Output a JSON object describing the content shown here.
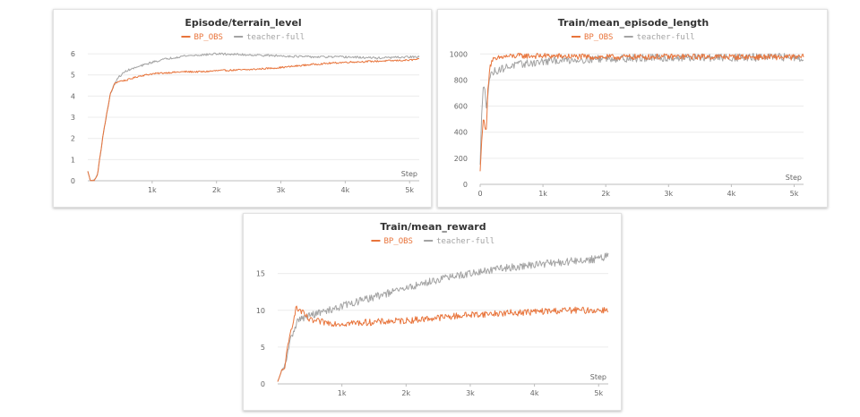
{
  "colors": {
    "bp_obs": "#e8743b",
    "teacher": "#a3a3a3"
  },
  "chart_data": [
    {
      "type": "line",
      "title": "Episode/terrain_level",
      "xlabel": "Step",
      "xlim": [
        0,
        5150
      ],
      "ylim": [
        0,
        6.3
      ],
      "x_ticks": [
        1000,
        2000,
        3000,
        4000,
        5000
      ],
      "x_tick_labels": [
        "1k",
        "2k",
        "3k",
        "4k",
        "5k"
      ],
      "y_ticks": [
        0,
        1,
        2,
        3,
        4,
        5,
        6
      ],
      "y_tick_labels": [
        "0",
        "1",
        "2",
        "3",
        "4",
        "5",
        "6"
      ],
      "legend_position": "top-center",
      "series": [
        {
          "name": "BP_OBS",
          "color": "#e8743b",
          "noise": 0.04,
          "x": [
            0,
            40,
            100,
            150,
            250,
            350,
            420,
            480,
            600,
            800,
            1000,
            1200,
            1500,
            1800,
            2000,
            2500,
            3000,
            3500,
            4000,
            4500,
            5000,
            5150
          ],
          "y": [
            0.45,
            0.0,
            0.0,
            0.3,
            2.4,
            4.1,
            4.6,
            4.7,
            4.75,
            4.95,
            5.05,
            5.1,
            5.15,
            5.15,
            5.2,
            5.25,
            5.35,
            5.5,
            5.6,
            5.65,
            5.7,
            5.75
          ]
        },
        {
          "name": "teacher-full",
          "color": "#a3a3a3",
          "noise": 0.05,
          "x": [
            0,
            40,
            100,
            150,
            250,
            350,
            420,
            480,
            600,
            800,
            1000,
            1200,
            1500,
            1800,
            2000,
            2500,
            3000,
            3500,
            4000,
            4500,
            5000,
            5150
          ],
          "y": [
            0.45,
            0.0,
            0.0,
            0.3,
            2.4,
            4.1,
            4.6,
            4.9,
            5.2,
            5.4,
            5.6,
            5.75,
            5.9,
            5.95,
            6.0,
            5.95,
            5.9,
            5.85,
            5.85,
            5.8,
            5.85,
            5.85
          ]
        }
      ]
    },
    {
      "type": "line",
      "title": "Train/mean_episode_length",
      "xlabel": "Step",
      "xlim": [
        0,
        5150
      ],
      "ylim": [
        0,
        1050
      ],
      "x_ticks": [
        0,
        1000,
        2000,
        3000,
        4000,
        5000
      ],
      "x_tick_labels": [
        "0",
        "1k",
        "2k",
        "3k",
        "4k",
        "5k"
      ],
      "y_ticks": [
        0,
        200,
        400,
        600,
        800,
        1000
      ],
      "y_tick_labels": [
        "0",
        "200",
        "400",
        "600",
        "800",
        "1000"
      ],
      "legend_position": "top-center",
      "series": [
        {
          "name": "BP_OBS",
          "color": "#e8743b",
          "noise": 22,
          "x": [
            0,
            20,
            50,
            80,
            100,
            120,
            150,
            200,
            250,
            300,
            400,
            600,
            1000,
            2000,
            3000,
            4000,
            5000,
            5150
          ],
          "y": [
            100,
            300,
            500,
            450,
            400,
            700,
            900,
            960,
            950,
            970,
            980,
            985,
            985,
            975,
            980,
            978,
            975,
            978
          ]
        },
        {
          "name": "teacher-full",
          "color": "#a3a3a3",
          "noise": 30,
          "x": [
            0,
            20,
            50,
            80,
            100,
            120,
            150,
            200,
            300,
            500,
            800,
            1200,
            2000,
            3000,
            4000,
            5000,
            5150
          ],
          "y": [
            150,
            500,
            750,
            700,
            600,
            700,
            820,
            860,
            880,
            910,
            930,
            950,
            965,
            970,
            972,
            975,
            970
          ]
        }
      ]
    },
    {
      "type": "line",
      "title": "Train/mean_reward",
      "xlabel": "Step",
      "xlim": [
        0,
        5150
      ],
      "ylim": [
        0,
        18
      ],
      "x_ticks": [
        1000,
        2000,
        3000,
        4000,
        5000
      ],
      "x_tick_labels": [
        "1k",
        "2k",
        "3k",
        "4k",
        "5k"
      ],
      "y_ticks": [
        0,
        5,
        10,
        15
      ],
      "y_tick_labels": [
        "0",
        "5",
        "10",
        "15"
      ],
      "legend_position": "top-center",
      "series": [
        {
          "name": "BP_OBS",
          "color": "#e8743b",
          "noise": 0.45,
          "x": [
            0,
            50,
            100,
            200,
            280,
            350,
            500,
            800,
            1000,
            1500,
            2000,
            2500,
            3000,
            3500,
            4000,
            4500,
            5000,
            5150
          ],
          "y": [
            0.3,
            1.5,
            2.0,
            7.0,
            10.2,
            10.0,
            8.6,
            8.3,
            8.2,
            8.4,
            8.6,
            9.0,
            9.4,
            9.6,
            9.8,
            10.0,
            10.0,
            10.1
          ]
        },
        {
          "name": "teacher-full",
          "color": "#a3a3a3",
          "noise": 0.5,
          "x": [
            0,
            50,
            100,
            200,
            300,
            400,
            500,
            800,
            1000,
            1500,
            2000,
            2500,
            3000,
            3500,
            4000,
            4500,
            5000,
            5150
          ],
          "y": [
            0.3,
            1.5,
            2.0,
            6.0,
            8.5,
            9.0,
            9.3,
            10.0,
            10.6,
            11.8,
            13.0,
            14.2,
            15.0,
            15.7,
            16.2,
            16.6,
            17.0,
            17.4
          ]
        }
      ]
    }
  ]
}
